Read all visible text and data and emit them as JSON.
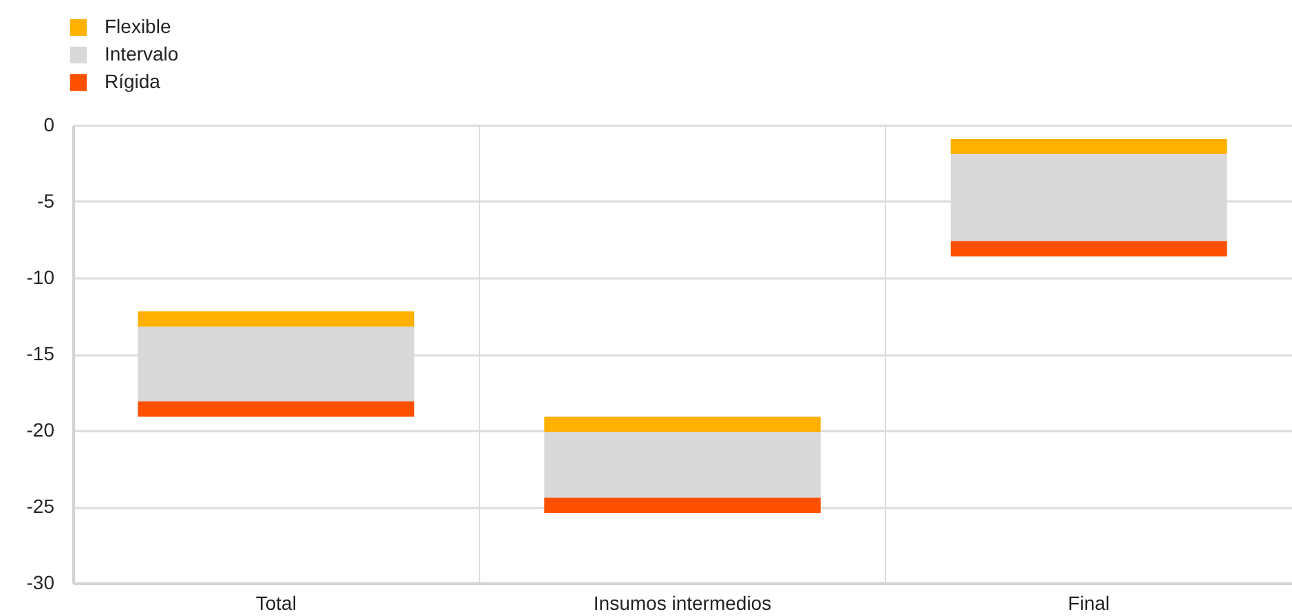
{
  "chart_data": {
    "type": "bar",
    "categories": [
      "Total",
      "Insumos intermedios",
      "Final"
    ],
    "series": [
      {
        "name": "Flexible",
        "color": "#ffb000",
        "base": [
          -13.2,
          -20.1,
          -1.9
        ],
        "values": [
          1.0,
          1.0,
          1.0
        ]
      },
      {
        "name": "Intervalo",
        "color": "#d9d9d9",
        "base": [
          -18.1,
          -24.4,
          -7.6
        ],
        "values": [
          4.9,
          4.3,
          5.7
        ]
      },
      {
        "name": "Rígida",
        "color": "#ff5000",
        "base": [
          -19.1,
          -25.4,
          -8.6
        ],
        "values": [
          1.0,
          1.0,
          1.0
        ]
      }
    ],
    "ylim": [
      -30,
      0
    ],
    "yticks": [
      0,
      -5,
      -10,
      -15,
      -20,
      -25,
      -30
    ],
    "grid": true,
    "legend": "top left"
  }
}
